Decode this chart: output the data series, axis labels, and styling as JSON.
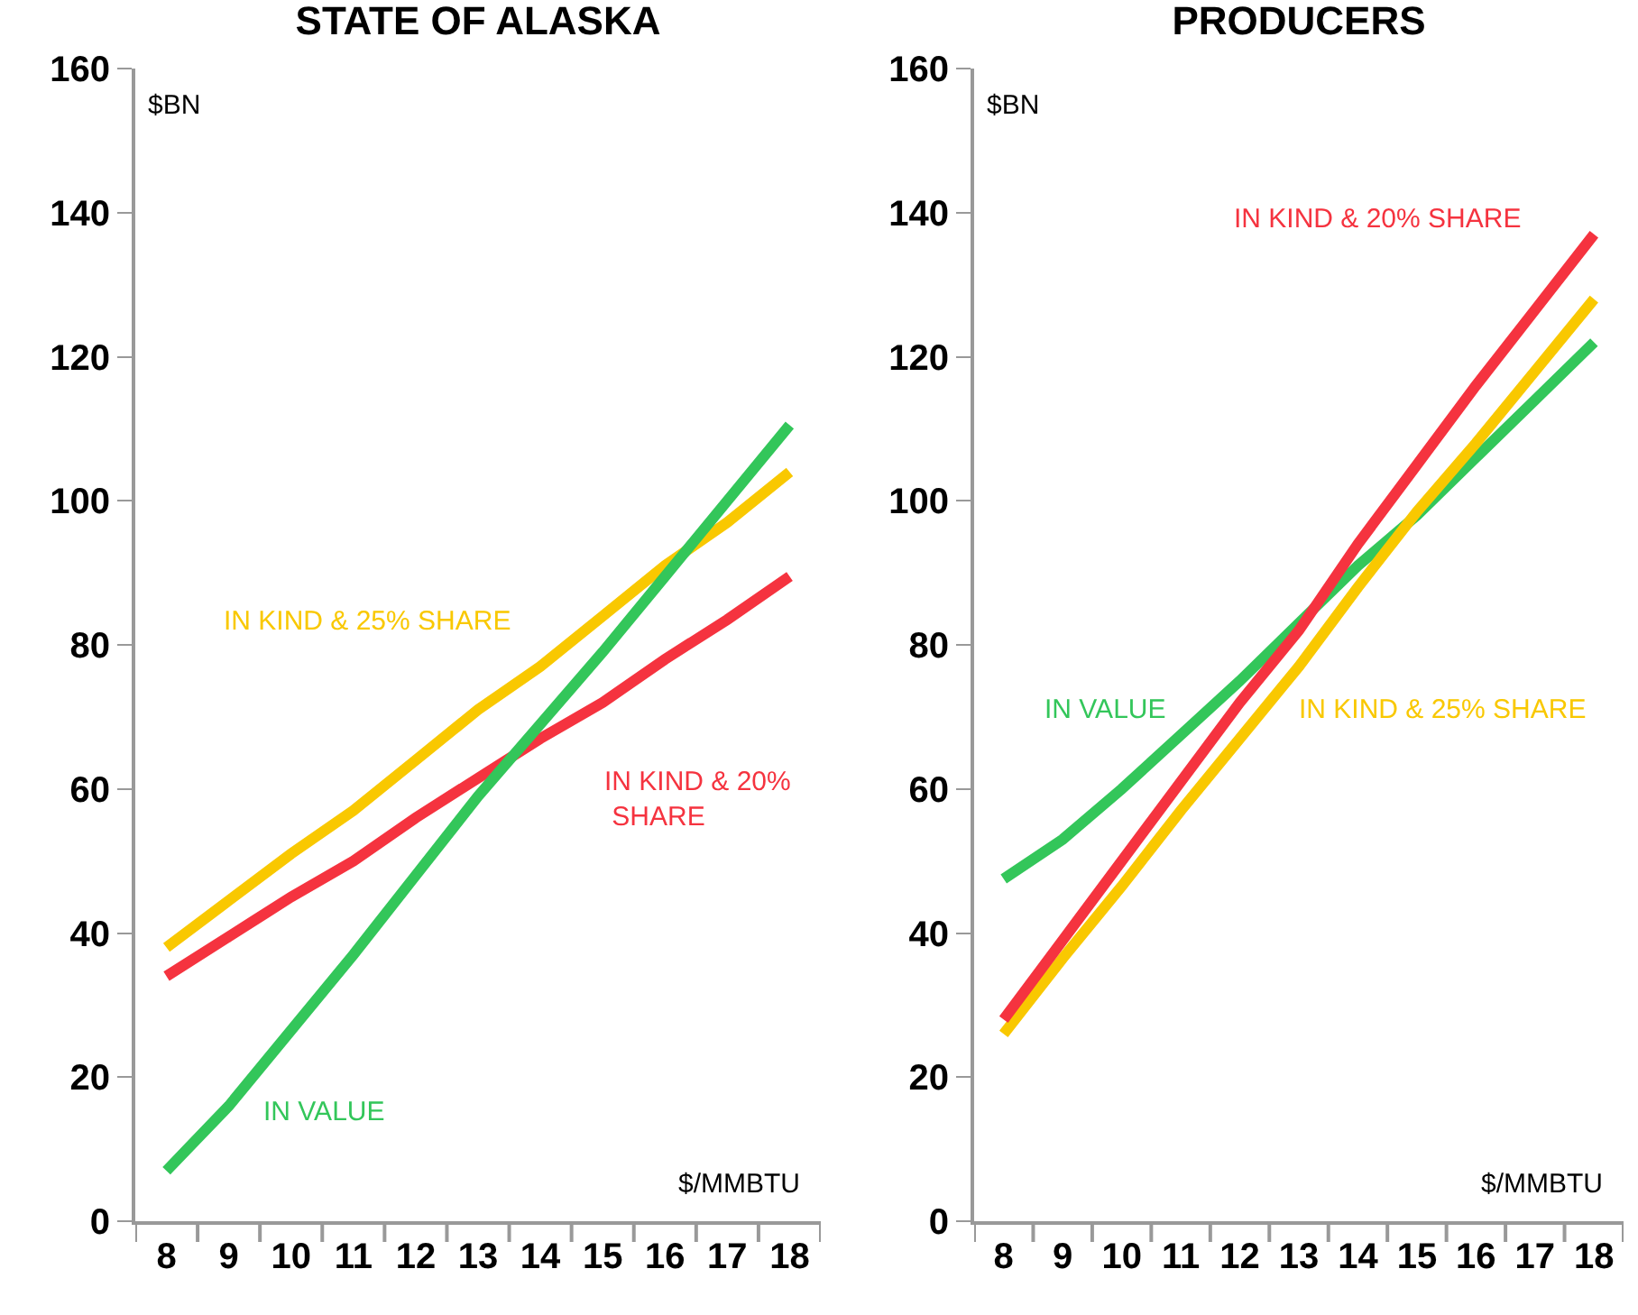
{
  "chart_data": [
    {
      "type": "line",
      "title": "STATE OF ALASKA",
      "xlabel": "$/MMBTU",
      "ylabel": "$BN",
      "categories": [
        "8",
        "9",
        "10",
        "11",
        "12",
        "13",
        "14",
        "15",
        "16",
        "17",
        "18"
      ],
      "ylim": [
        0,
        160
      ],
      "yticks": [
        0,
        20,
        40,
        60,
        80,
        100,
        120,
        140,
        160
      ],
      "grid": false,
      "legend": false,
      "line_style": "solid",
      "series": [
        {
          "name": "IN KIND & 25% SHARE",
          "color": "#f9c800",
          "values": [
            38,
            44.5,
            51,
            57,
            64,
            71,
            77,
            84,
            91,
            97,
            104
          ]
        },
        {
          "name": "IN KIND & 20% SHARE",
          "color": "#f5333f",
          "values": [
            34,
            39.5,
            45,
            50,
            56,
            61.5,
            67,
            72,
            78,
            83.5,
            89.5
          ]
        },
        {
          "name": "IN VALUE",
          "color": "#33c65a",
          "values": [
            7,
            16,
            26.5,
            37,
            48,
            59,
            69,
            79,
            89.5,
            100,
            110.5
          ]
        }
      ]
    },
    {
      "type": "line",
      "title": "PRODUCERS",
      "xlabel": "$/MMBTU",
      "ylabel": "$BN",
      "categories": [
        "8",
        "9",
        "10",
        "11",
        "12",
        "13",
        "14",
        "15",
        "16",
        "17",
        "18"
      ],
      "ylim": [
        0,
        160
      ],
      "yticks": [
        0,
        20,
        40,
        60,
        80,
        100,
        120,
        140,
        160
      ],
      "grid": false,
      "legend": false,
      "line_style": "solid",
      "series": [
        {
          "name": "IN VALUE",
          "color": "#33c65a",
          "values": [
            47.5,
            53,
            60,
            67.5,
            75,
            83,
            91,
            98,
            106,
            114,
            122
          ]
        },
        {
          "name": "IN KIND & 25% SHARE",
          "color": "#f9c800",
          "values": [
            26,
            36.5,
            46.5,
            57,
            67,
            77,
            88,
            98.5,
            108,
            118,
            128
          ]
        },
        {
          "name": "IN KIND & 20% SHARE",
          "color": "#f5333f",
          "values": [
            28,
            39,
            50,
            61,
            72,
            82,
            94,
            105,
            116,
            126.5,
            137
          ]
        }
      ]
    }
  ]
}
